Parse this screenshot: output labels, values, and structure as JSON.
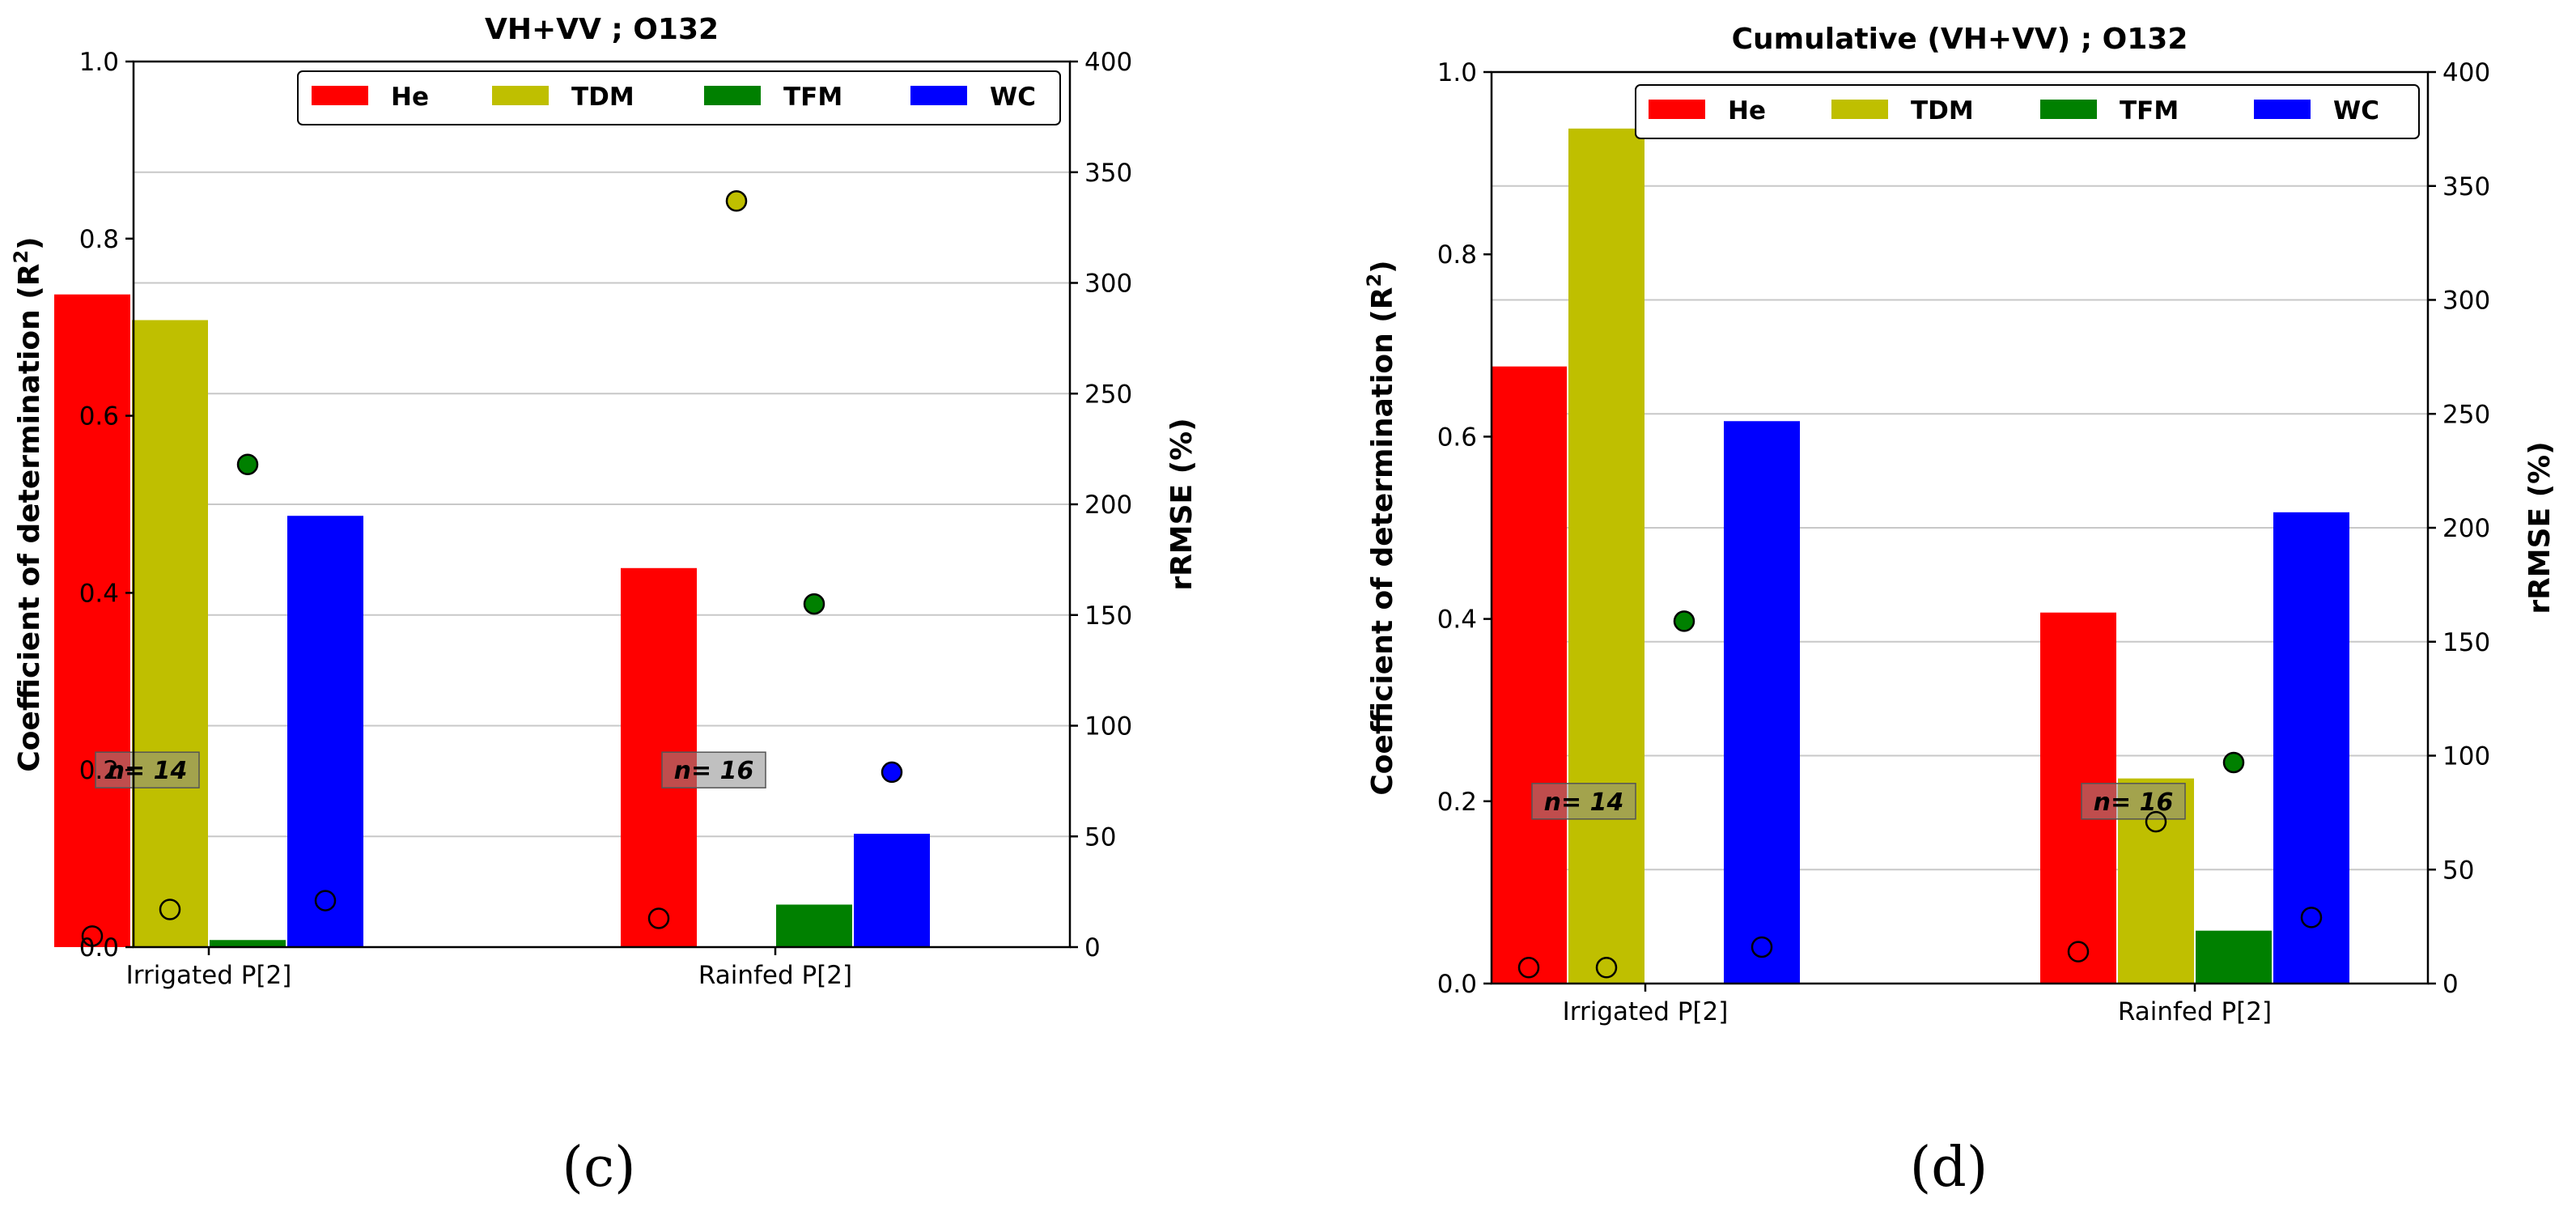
{
  "charts": [
    {
      "id": "c",
      "caption": "(c)",
      "chart_data": {
        "type": "bar",
        "title": "VH+VV ; O132",
        "categories": [
          "Irrigated P[2]",
          "Rainfed P[2]"
        ],
        "ylabel": "Coefficient of determination (R²)",
        "y2label": "rRMSE (%)",
        "ylim": [
          0,
          1.0
        ],
        "y2lim": [
          0,
          400
        ],
        "yticks": [
          "0.0",
          "0.2",
          "0.4",
          "0.6",
          "0.8",
          "1.0"
        ],
        "y2ticks": [
          "0",
          "50",
          "100",
          "150",
          "200",
          "250",
          "300",
          "350",
          "400"
        ],
        "legend_position": "top-right",
        "series": [
          {
            "name": "He",
            "color": "#ff0000",
            "r2": [
              0.737,
              0.428
            ],
            "rrmse": [
              5,
              13
            ]
          },
          {
            "name": "TDM",
            "color": "#bfbf00",
            "r2": [
              0.708,
              0.0
            ],
            "rrmse": [
              17,
              337
            ]
          },
          {
            "name": "TFM",
            "color": "#008000",
            "r2": [
              0.008,
              0.048
            ],
            "rrmse": [
              218,
              155
            ]
          },
          {
            "name": "WC",
            "color": "#0000ff",
            "r2": [
              0.487,
              0.128
            ],
            "rrmse": [
              21,
              79
            ]
          }
        ],
        "rrmse_filled": [
          [
            false,
            false,
            true,
            false
          ],
          [
            false,
            true,
            true,
            true
          ]
        ],
        "n_labels": [
          "n= 14",
          "n= 16"
        ],
        "grid": "horizontal (secondary axis)"
      }
    },
    {
      "id": "d",
      "caption": "(d)",
      "chart_data": {
        "type": "bar",
        "title": "Cumulative (VH+VV) ; O132",
        "categories": [
          "Irrigated P[2]",
          "Rainfed P[2]"
        ],
        "ylabel": "Coefficient of determination (R²)",
        "y2label": "rRMSE (%)",
        "ylim": [
          0,
          1.0
        ],
        "y2lim": [
          0,
          400
        ],
        "yticks": [
          "0.0",
          "0.2",
          "0.4",
          "0.6",
          "0.8",
          "1.0"
        ],
        "y2ticks": [
          "0",
          "50",
          "100",
          "150",
          "200",
          "250",
          "300",
          "350",
          "400"
        ],
        "legend_position": "top-right",
        "series": [
          {
            "name": "He",
            "color": "#ff0000",
            "r2": [
              0.677,
              0.407
            ],
            "rrmse": [
              7,
              14
            ]
          },
          {
            "name": "TDM",
            "color": "#bfbf00",
            "r2": [
              0.938,
              0.225
            ],
            "rrmse": [
              7,
              71
            ]
          },
          {
            "name": "TFM",
            "color": "#008000",
            "r2": [
              0.0,
              0.058
            ],
            "rrmse": [
              159,
              97
            ]
          },
          {
            "name": "WC",
            "color": "#0000ff",
            "r2": [
              0.617,
              0.517
            ],
            "rrmse": [
              16,
              29
            ]
          }
        ],
        "rrmse_filled": [
          [
            false,
            false,
            true,
            false
          ],
          [
            false,
            false,
            true,
            false
          ]
        ],
        "n_labels": [
          "n= 14",
          "n= 16"
        ],
        "grid": "horizontal (secondary axis)"
      }
    }
  ]
}
